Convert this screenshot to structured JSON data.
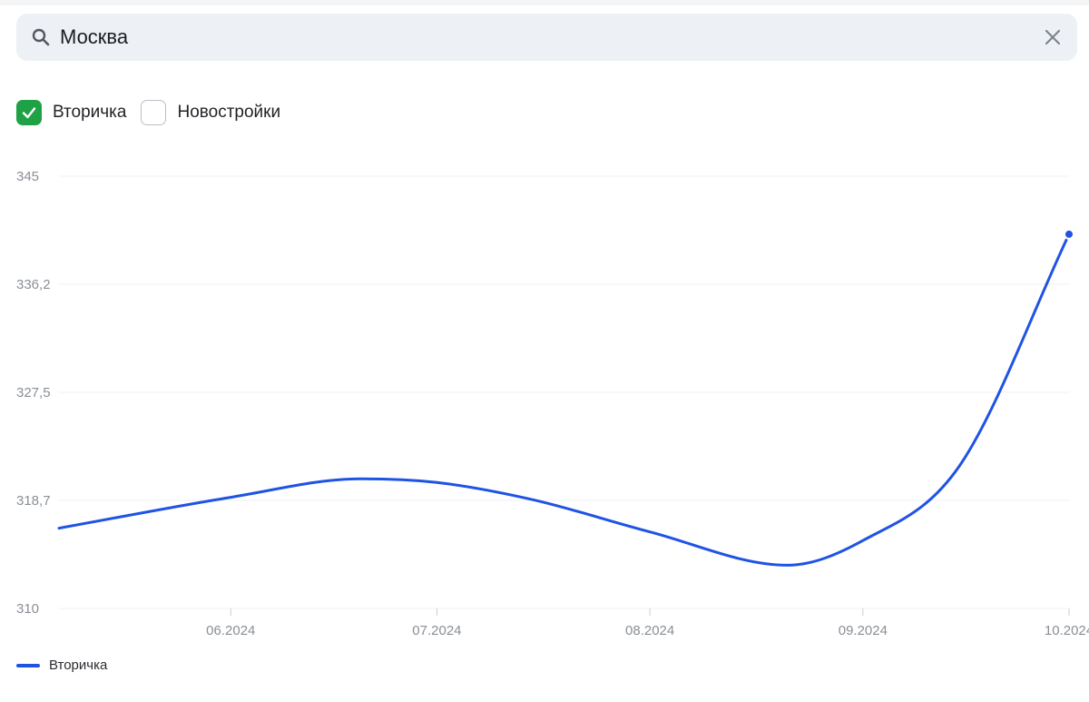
{
  "search": {
    "value": "Москва",
    "icon": "search-icon",
    "clear_icon": "close-icon"
  },
  "filters": [
    {
      "label": "Вторичка",
      "checked": true
    },
    {
      "label": "Новостройки",
      "checked": false
    }
  ],
  "colors": {
    "accent": "#1f53e4",
    "checkbox_checked": "#1fa145"
  },
  "chart_data": {
    "type": "line",
    "title": "",
    "xlabel": "",
    "ylabel": "",
    "ylim": [
      310,
      345
    ],
    "yticks": [
      "310",
      "318,7",
      "327,5",
      "336,2",
      "345"
    ],
    "yticks_values": [
      310,
      318.75,
      327.5,
      336.25,
      345
    ],
    "xticks": [
      "06.2024",
      "07.2024",
      "08.2024",
      "09.2024",
      "10.2024"
    ],
    "xticks_values": [
      "2024-06-01",
      "2024-07-01",
      "2024-08-01",
      "2024-09-01",
      "2024-10-01"
    ],
    "grid": true,
    "legend_position": "bottom-left",
    "series": [
      {
        "name": "Вторичка",
        "x": [
          "2024-05-07",
          "2024-06-01",
          "2024-06-20",
          "2024-07-01",
          "2024-07-15",
          "2024-08-01",
          "2024-08-21",
          "2024-09-01",
          "2024-09-15",
          "2024-10-01"
        ],
        "y": [
          316.5,
          319.0,
          320.5,
          320.2,
          318.8,
          316.2,
          313.5,
          315.5,
          321.5,
          340.3
        ]
      }
    ]
  }
}
